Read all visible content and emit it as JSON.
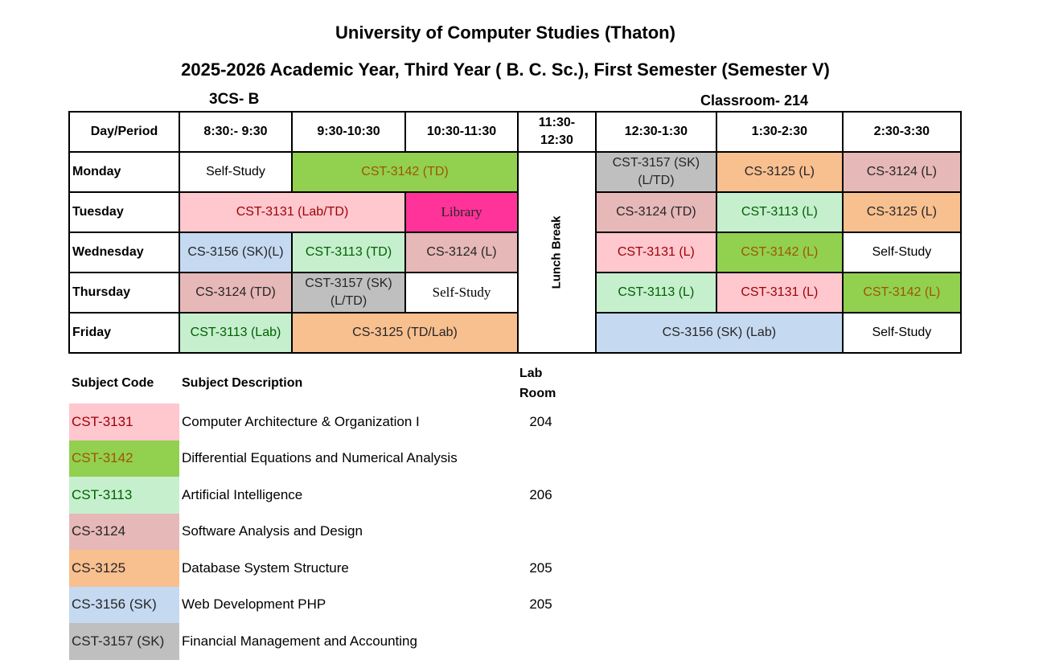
{
  "header": {
    "university": "University of Computer Studies (Thaton)",
    "subtitle": "2025-2026 Academic Year, Third Year ( B. C. Sc.), First Semester (Semester V)",
    "class_name": "3CS- B",
    "classroom": "Classroom- 214"
  },
  "timetable": {
    "headers": {
      "day_period": "Day/Period",
      "p1": "8:30:- 9:30",
      "p2": "9:30-10:30",
      "p3": "10:30-11:30",
      "lunch_line1": "11:30-",
      "lunch_line2": "12:30",
      "p4": "12:30-1:30",
      "p5": "1:30-2:30",
      "p6": "2:30-3:30"
    },
    "lunch_label": "Lunch Break",
    "monday": {
      "day": "Monday",
      "c1": "Self-Study",
      "c2": "CST-3142 (TD)",
      "c4_line1": "CST-3157 (SK)",
      "c4_line2": "(L/TD)",
      "c5": "CS-3125 (L)",
      "c6": "CS-3124 (L)"
    },
    "tuesday": {
      "day": "Tuesday",
      "c1": "CST-3131 (Lab/TD)",
      "c3": "Library",
      "c4": "CS-3124 (TD)",
      "c5": "CST-3113 (L)",
      "c6": "CS-3125 (L)"
    },
    "wednesday": {
      "day": "Wednesday",
      "c1": "CS-3156 (SK)(L)",
      "c2": "CST-3113 (TD)",
      "c3": "CS-3124 (L)",
      "c4": "CST-3131 (L)",
      "c5": "CST-3142 (L)",
      "c6": "Self-Study"
    },
    "thursday": {
      "day": "Thursday",
      "c1": "CS-3124 (TD)",
      "c2_line1": "CST-3157 (SK)",
      "c2_line2": "(L/TD)",
      "c3": "Self-Study",
      "c4": "CST-3113 (L)",
      "c5": "CST-3131 (L)",
      "c6": "CST-3142 (L)"
    },
    "friday": {
      "day": "Friday",
      "c1": "CST-3113 (Lab)",
      "c2": "CS-3125 (TD/Lab)",
      "c4": "CS-3156 (SK) (Lab)",
      "c6": "Self-Study"
    }
  },
  "legend": {
    "headers": {
      "code": "Subject Code",
      "description": "Subject Description",
      "lab_line1": "Lab",
      "lab_line2": "Room"
    },
    "rows": [
      {
        "code": "CST-3131",
        "description": "Computer Architecture & Organization I",
        "lab": "204"
      },
      {
        "code": "CST-3142",
        "description": "Differential Equations and Numerical Analysis",
        "lab": ""
      },
      {
        "code": "CST-3113",
        "description": "Artificial Intelligence",
        "lab": "206"
      },
      {
        "code": "CS-3124",
        "description": "Software Analysis and Design",
        "lab": ""
      },
      {
        "code": "CS-3125",
        "description": "Database System Structure",
        "lab": "205"
      },
      {
        "code": "CS-3156 (SK)",
        "description": "Web Development PHP",
        "lab": "205"
      },
      {
        "code": "CST-3157 (SK)",
        "description": "Financial Management and Accounting",
        "lab": ""
      }
    ]
  },
  "subject_colors": {
    "CST-3131": "#ffc7ce",
    "CST-3142": "#92d050",
    "CST-3113": "#c6efce",
    "CS-3124": "#e6b8b7",
    "CS-3125": "#f8bf8f",
    "CS-3156": "#c5d9f1",
    "CST-3157": "#bfbfbf",
    "Library": "#ff3399"
  }
}
